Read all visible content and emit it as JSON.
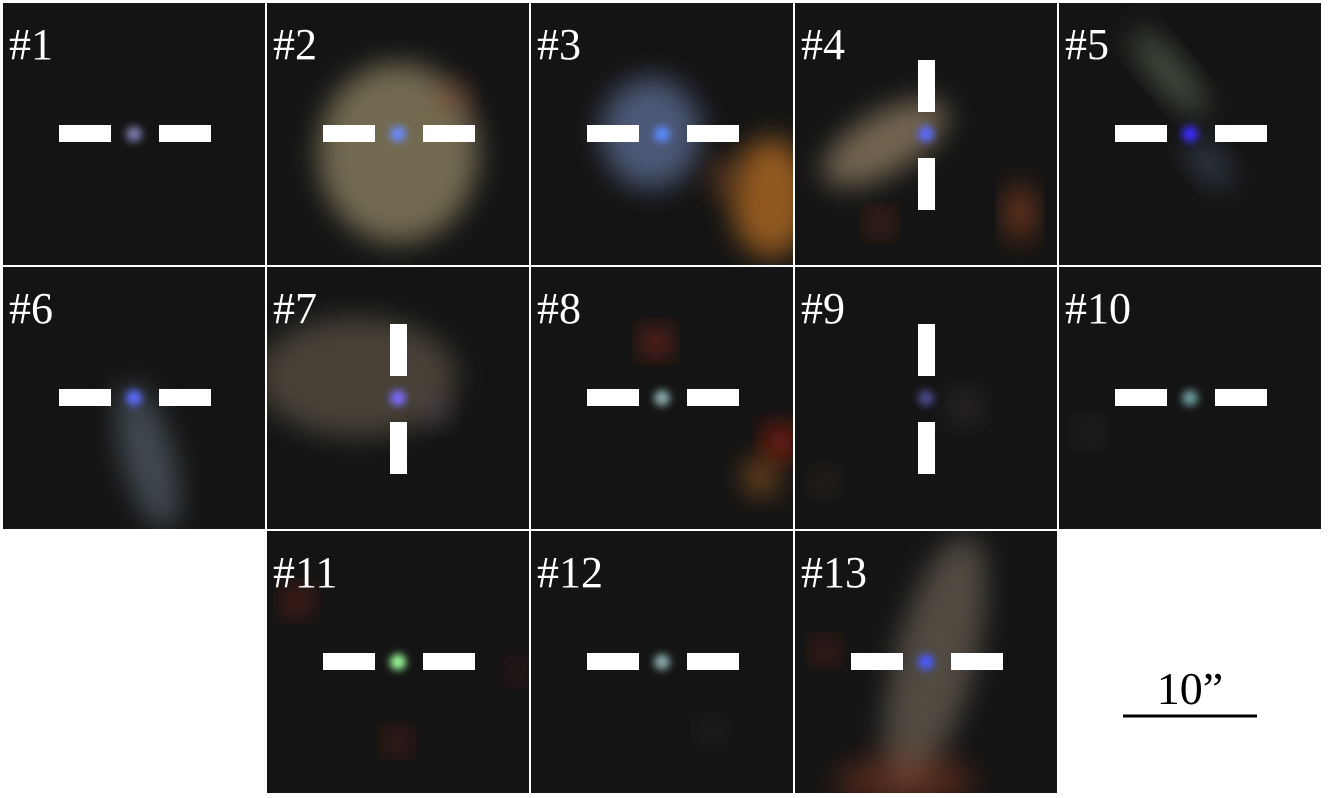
{
  "panels": [
    {
      "label": "#1"
    },
    {
      "label": "#2"
    },
    {
      "label": "#3"
    },
    {
      "label": "#4"
    },
    {
      "label": "#5"
    },
    {
      "label": "#6"
    },
    {
      "label": "#7"
    },
    {
      "label": "#8"
    },
    {
      "label": "#9"
    },
    {
      "label": "#10"
    },
    {
      "label": "#11"
    },
    {
      "label": "#12"
    },
    {
      "label": "#13"
    }
  ],
  "scale_bar": {
    "label": "10”"
  }
}
